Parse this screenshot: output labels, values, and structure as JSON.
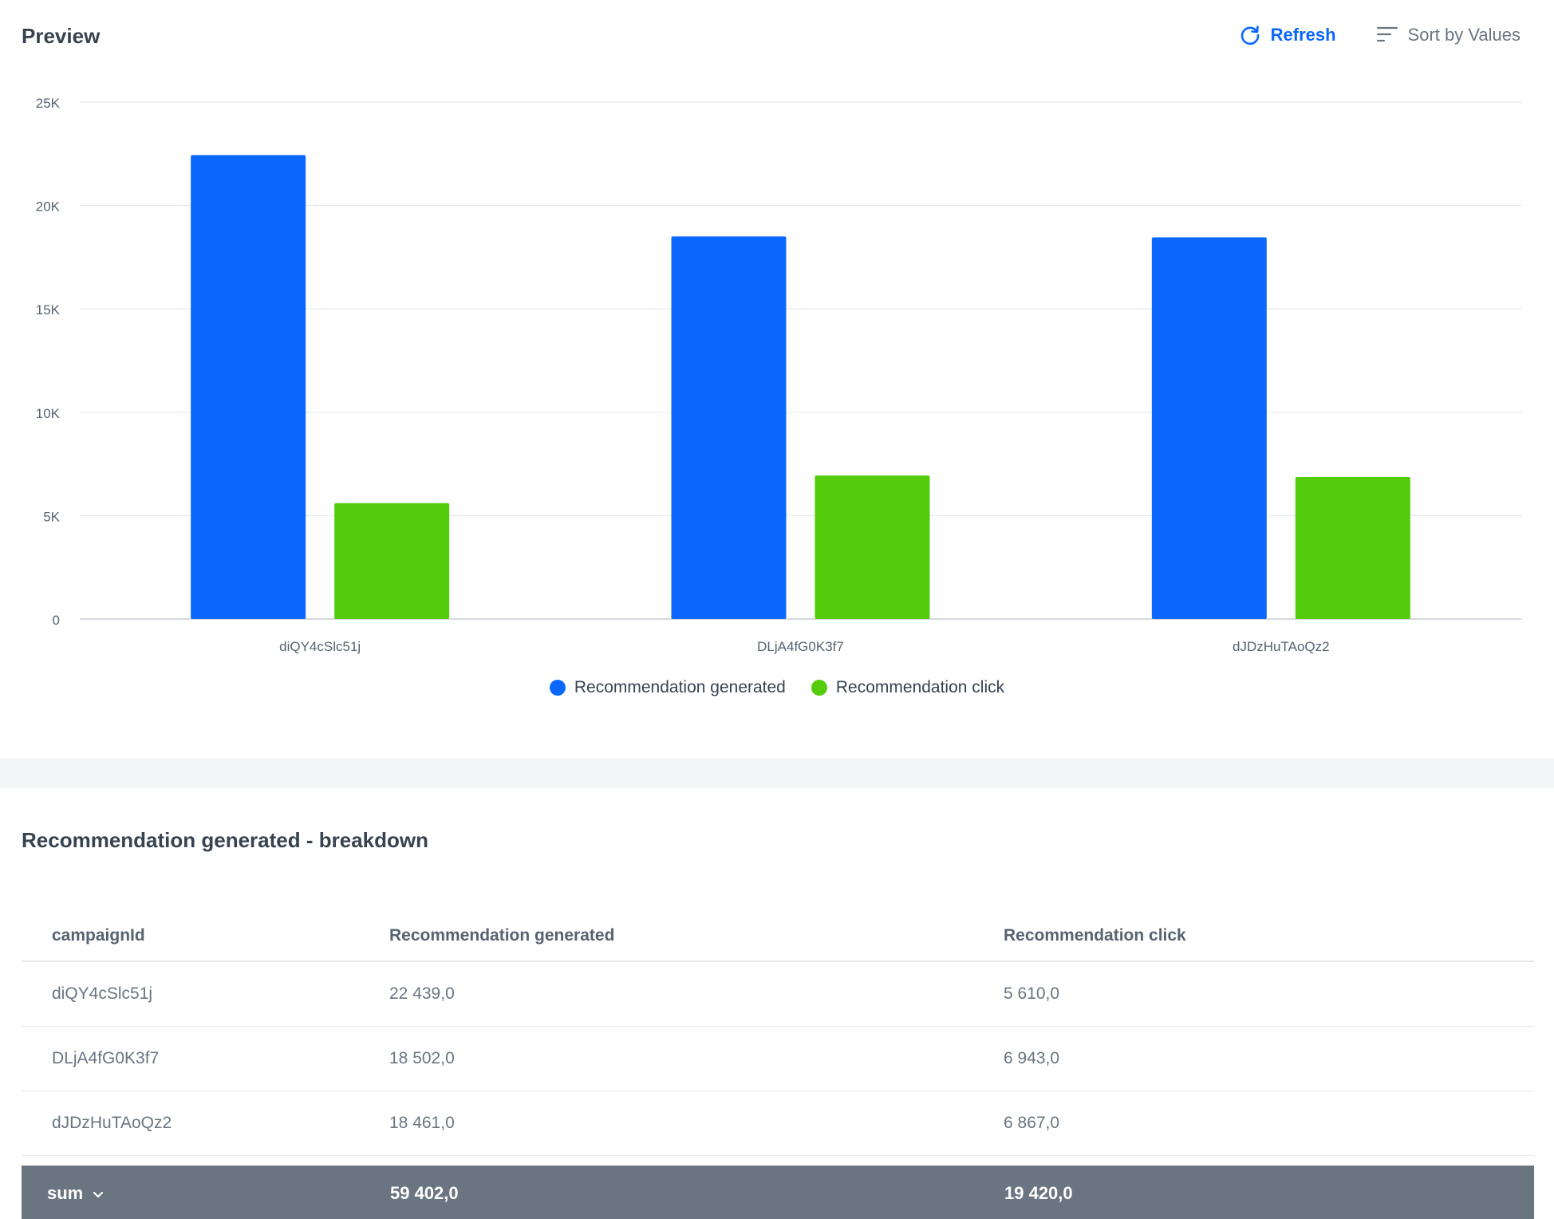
{
  "preview": {
    "title": "Preview",
    "refresh_label": "Refresh",
    "sort_label": "Sort by Values"
  },
  "chart_data": {
    "type": "bar",
    "categories": [
      "diQY4cSlc51j",
      "DLjA4fG0K3f7",
      "dJDzHuTAoQz2"
    ],
    "series": [
      {
        "name": "Recommendation generated",
        "values": [
          22439,
          18502,
          18461
        ],
        "color": "#0b68ff"
      },
      {
        "name": "Recommendation click",
        "values": [
          5610,
          6943,
          6867
        ],
        "color": "#54cc0c"
      }
    ],
    "yticks": [
      "0",
      "5K",
      "10K",
      "15K",
      "20K",
      "25K"
    ],
    "ylim": [
      0,
      25000
    ],
    "grid": true,
    "legend": "bottom-center"
  },
  "breakdown": {
    "title": "Recommendation generated - breakdown",
    "headers": [
      "campaignId",
      "Recommendation generated",
      "Recommendation click"
    ],
    "rows": [
      [
        "diQY4cSlc51j",
        "22 439,0",
        "5 610,0"
      ],
      [
        "DLjA4fG0K3f7",
        "18 502,0",
        "6 943,0"
      ],
      [
        "dJDzHuTAoQz2",
        "18 461,0",
        "6 867,0"
      ]
    ],
    "sum": {
      "label": "sum",
      "generated": "59 402,0",
      "click": "19 420,0"
    }
  },
  "icons": {
    "refresh": "refresh-icon",
    "sort": "sort-icon",
    "sum_dropdown": "chevron-down-icon"
  }
}
